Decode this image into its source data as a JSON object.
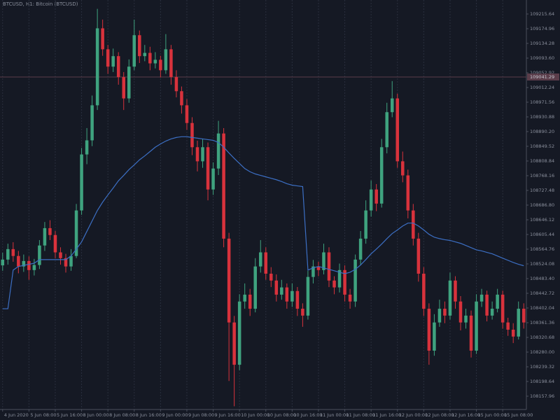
{
  "chart_data": {
    "type": "candlestick",
    "title": "BTCUSD, H1: Bitcoin (BTCUSD)",
    "background": "#151924",
    "up_color": "#3fa37f",
    "down_color": "#d8323c",
    "grid": true,
    "xlim": [
      -0.5,
      99.5
    ],
    "xticks": [
      {
        "value": 0,
        "label": "4 Jun 2020"
      },
      {
        "value": 5,
        "label": "5 Jun 08:00"
      },
      {
        "value": 10,
        "label": "5 Jun 16:00"
      },
      {
        "value": 15,
        "label": "8 Jun 00:00"
      },
      {
        "value": 20,
        "label": "8 Jun 08:00"
      },
      {
        "value": 25,
        "label": "8 Jun 16:00"
      },
      {
        "value": 30,
        "label": "9 Jun 00:00"
      },
      {
        "value": 35,
        "label": "9 Jun 08:00"
      },
      {
        "value": 40,
        "label": "9 Jun 16:00"
      },
      {
        "value": 45,
        "label": "10 Jun 00:00"
      },
      {
        "value": 50,
        "label": "10 Jun 08:00"
      },
      {
        "value": 55,
        "label": "10 Jun 16:00"
      },
      {
        "value": 60,
        "label": "11 Jun 00:00"
      },
      {
        "value": 65,
        "label": "11 Jun 08:00"
      },
      {
        "value": 70,
        "label": "11 Jun 16:00"
      },
      {
        "value": 75,
        "label": "12 Jun 00:00"
      },
      {
        "value": 80,
        "label": "12 Jun 08:00"
      },
      {
        "value": 85,
        "label": "12 Jun 16:00"
      },
      {
        "value": 90,
        "label": "15 Jun 00:00"
      },
      {
        "value": 95,
        "label": "15 Jun 08:00"
      }
    ],
    "ylim": [
      108121.15,
      109254.38
    ],
    "yticks": [
      109215.64,
      109174.96,
      109134.28,
      {
        "value": 109093.6,
        "label": "109093.60"
      },
      109052.92,
      109012.24,
      108971.56,
      108930.88,
      {
        "value": 108890.2,
        "label": "108890.20"
      },
      108849.52,
      108808.84,
      108768.16,
      108727.48,
      {
        "value": 108686.8,
        "label": "108686.80"
      },
      108646.12,
      108605.44,
      108564.76,
      108524.08,
      {
        "value": 108483.4,
        "label": "108483.40"
      },
      108442.72,
      108402.04,
      108361.36,
      108320.68,
      {
        "value": 108280,
        "label": "108280.00"
      },
      108239.32,
      108198.64,
      108157.96
    ],
    "price_line": {
      "value": 109041.29,
      "color": "#5a3d4a"
    },
    "open": [
      108520,
      108536,
      108565,
      108546,
      108517,
      108532,
      108507,
      108521,
      108575,
      108623,
      108604,
      108556,
      108540,
      108517,
      108546,
      108672,
      108827,
      108866,
      108963,
      109176,
      109118,
      109070,
      109099,
      109041,
      108982,
      109070,
      109157,
      109099,
      109108,
      109079,
      109089,
      109060,
      109118,
      109041,
      109002,
      108963,
      108914,
      108847,
      108808,
      108847,
      108730,
      108788,
      108885,
      108594,
      108362,
      108245,
      108420,
      108439,
      108400,
      108517,
      108556,
      108497,
      108478,
      108439,
      108459,
      108420,
      108449,
      108400,
      108381,
      108488,
      108517,
      108507,
      108556,
      108478,
      108459,
      108507,
      108439,
      108420,
      108536,
      108594,
      108672,
      108730,
      108691,
      108847,
      108944,
      108982,
      108808,
      108769,
      108672,
      108594,
      108497,
      108400,
      108284,
      108362,
      108400,
      108381,
      108478,
      108420,
      108362,
      108381,
      108284,
      108420,
      108439,
      108381,
      108400,
      108439,
      108362,
      108342,
      108323,
      108400
    ],
    "high": [
      108555,
      108580,
      108584,
      108560,
      108550,
      108545,
      108538,
      108590,
      108640,
      108645,
      108615,
      108570,
      108552,
      108565,
      108690,
      108845,
      108900,
      108990,
      109230,
      109200,
      109130,
      109120,
      109110,
      109055,
      109090,
      109200,
      109170,
      109130,
      109125,
      109110,
      109100,
      109160,
      109130,
      109060,
      109015,
      108980,
      108930,
      108865,
      108870,
      108860,
      108805,
      108920,
      108900,
      108610,
      108380,
      108440,
      108470,
      108455,
      108540,
      108590,
      108570,
      108515,
      108495,
      108480,
      108470,
      108470,
      108460,
      108415,
      108505,
      108535,
      108530,
      108580,
      108570,
      108490,
      108525,
      108520,
      108455,
      108550,
      108615,
      108700,
      108755,
      108745,
      108870,
      108970,
      109030,
      108995,
      108835,
      108785,
      108690,
      108610,
      108515,
      108415,
      108385,
      108425,
      108420,
      108500,
      108490,
      108435,
      108400,
      108395,
      108440,
      108455,
      108450,
      108420,
      108455,
      108450,
      108375,
      108360,
      108420,
      108415
    ],
    "low": [
      108505,
      108522,
      108530,
      108498,
      108502,
      108480,
      108492,
      108510,
      108560,
      108590,
      108540,
      108522,
      108500,
      108505,
      108540,
      108660,
      108800,
      108850,
      108950,
      109100,
      109050,
      109055,
      109020,
      108950,
      108970,
      109060,
      109080,
      109085,
      109060,
      109065,
      109040,
      109050,
      109020,
      108985,
      108940,
      108895,
      108825,
      108780,
      108790,
      108700,
      108715,
      108770,
      108570,
      108200,
      108130,
      108230,
      108400,
      108380,
      108390,
      108500,
      108480,
      108460,
      108420,
      108425,
      108400,
      108405,
      108380,
      108350,
      108370,
      108470,
      108490,
      108495,
      108460,
      108440,
      108445,
      108420,
      108400,
      108405,
      108520,
      108580,
      108655,
      108670,
      108680,
      108830,
      108930,
      108790,
      108750,
      108650,
      108575,
      108475,
      108380,
      108245,
      108270,
      108350,
      108360,
      108370,
      108400,
      108340,
      108345,
      108265,
      108275,
      108405,
      108365,
      108370,
      108390,
      108345,
      108325,
      108305,
      108315,
      108345
    ],
    "close": [
      108536,
      108565,
      108546,
      108517,
      108532,
      108507,
      108521,
      108575,
      108623,
      108604,
      108556,
      108540,
      108517,
      108546,
      108672,
      108827,
      108866,
      108963,
      109176,
      109118,
      109070,
      109099,
      109041,
      108982,
      109070,
      109157,
      109099,
      109108,
      109079,
      109089,
      109060,
      109118,
      109041,
      109002,
      108963,
      108914,
      108847,
      108808,
      108847,
      108730,
      108788,
      108885,
      108594,
      108362,
      108245,
      108420,
      108439,
      108400,
      108517,
      108556,
      108497,
      108478,
      108439,
      108459,
      108420,
      108449,
      108400,
      108381,
      108488,
      108517,
      108507,
      108556,
      108478,
      108459,
      108507,
      108439,
      108420,
      108536,
      108594,
      108672,
      108730,
      108691,
      108847,
      108944,
      108982,
      108808,
      108769,
      108672,
      108594,
      108497,
      108400,
      108284,
      108362,
      108400,
      108381,
      108478,
      108420,
      108362,
      108381,
      108284,
      108420,
      108439,
      108381,
      108400,
      108439,
      108362,
      108342,
      108323,
      108400,
      108362
    ],
    "ma": {
      "color": "#3c6fc4",
      "values": [
        108400,
        108400,
        108507,
        108517,
        108520,
        108523,
        108526,
        108536,
        108536,
        108536,
        108536,
        108536,
        108536,
        108546,
        108565,
        108585,
        108614,
        108643,
        108672,
        108695,
        108715,
        108734,
        108754,
        108769,
        108785,
        108798,
        108812,
        108823,
        108835,
        108847,
        108856,
        108864,
        108870,
        108874,
        108876,
        108876,
        108874,
        108872,
        108870,
        108868,
        108866,
        108860,
        108847,
        108831,
        108816,
        108802,
        108788,
        108779,
        108773,
        108769,
        108765,
        108761,
        108757,
        108752,
        108746,
        108742,
        108740,
        108738,
        108507,
        108513,
        108517,
        108513,
        108509,
        108505,
        108501,
        108497,
        108501,
        108509,
        108521,
        108536,
        108552,
        108565,
        108579,
        108594,
        108608,
        108618,
        108629,
        108637,
        108637,
        108629,
        108618,
        108606,
        108598,
        108594,
        108591,
        108589,
        108585,
        108581,
        108575,
        108569,
        108563,
        108560,
        108556,
        108552,
        108546,
        108540,
        108534,
        108528,
        108523,
        108519
      ]
    }
  }
}
